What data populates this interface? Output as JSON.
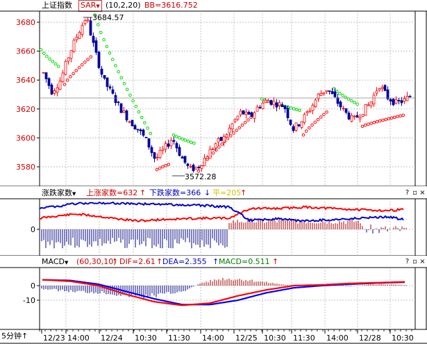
{
  "kline": {
    "index_name": "上证指数",
    "sar_label": "SAR",
    "sar_params": "(10,2,20)",
    "bb_text": "BB=3616.752",
    "y_labels": [
      "3680",
      "3660",
      "3640",
      "3620",
      "3600",
      "3580"
    ],
    "high_label": "3684.57",
    "low_label": "3572.28"
  },
  "breadth": {
    "indicator": "涨跌家数",
    "up_text": "上涨家数=632",
    "down_text": "下跌家数=366",
    "flat_text": "平=205",
    "y_labels": [
      "0"
    ]
  },
  "macd": {
    "indicator": "MACD",
    "params": "(60,30,10)",
    "dif_text": "DIF=2.61",
    "dea_text": "DEA=2.355",
    "macd_text": "MACD=0.511",
    "y_labels": [
      "0",
      "-10"
    ]
  },
  "xaxis": {
    "period": "5分钟",
    "labels": [
      "12/23",
      "14:00",
      "12/24",
      "10:30",
      "11:30",
      "14:00",
      "12/25",
      "10:30",
      "11:30",
      "14:00",
      "12/28",
      "10:30"
    ]
  },
  "colors": {
    "up": "#ff0000",
    "down": "#0000a0",
    "sar_up": "#ff0000",
    "sar_down": "#00d800",
    "dif": "#ff0000",
    "dea": "#0000ff",
    "hist_pos": "#a00000",
    "hist_neg": "#000080",
    "title_red": "#cc0000",
    "title_blue": "#0000cc",
    "title_yellow": "#d0c000"
  },
  "chart_data": [
    {
      "type": "candlestick",
      "title": "上证指数",
      "ylim": [
        3570,
        3690
      ],
      "x_labels": [
        "12/23",
        "14:00",
        "12/24",
        "10:30",
        "11:30",
        "14:00",
        "12/25",
        "10:30",
        "11:30",
        "14:00",
        "12/28",
        "10:30"
      ],
      "close_path": [
        3645,
        3632,
        3640,
        3658,
        3672,
        3684,
        3660,
        3640,
        3630,
        3620,
        3612,
        3606,
        3598,
        3585,
        3592,
        3600,
        3587,
        3578,
        3580,
        3588,
        3596,
        3600,
        3610,
        3618,
        3614,
        3622,
        3626,
        3624,
        3622,
        3606,
        3612,
        3620,
        3630,
        3634,
        3626,
        3618,
        3612,
        3618,
        3624,
        3637,
        3628,
        3624,
        3626,
        3631
      ],
      "annotations": [
        {
          "text": "3684.57",
          "kind": "high"
        },
        {
          "text": "3572.28",
          "kind": "low"
        }
      ],
      "reference_lines": [
        {
          "name": "BB",
          "value": 3616.752
        }
      ]
    },
    {
      "type": "line",
      "title": "涨跌家数",
      "series": [
        {
          "name": "上涨家数",
          "final_value": 632
        },
        {
          "name": "下跌家数",
          "final_value": 366
        }
      ]
    },
    {
      "type": "line",
      "title": "MACD",
      "ylim": [
        -15,
        4
      ],
      "series": [
        {
          "name": "DIF",
          "values": [
            4,
            3,
            0,
            -6,
            -11,
            -13.5,
            -12,
            -7,
            -3,
            0,
            0.5,
            1.5,
            2,
            2.6
          ]
        },
        {
          "name": "DEA",
          "values": [
            4,
            3.5,
            1,
            -4,
            -9,
            -13,
            -13,
            -10,
            -5,
            -1.5,
            0,
            1,
            1.8,
            2.355
          ]
        },
        {
          "name": "MACD",
          "last_value": 0.511
        }
      ]
    }
  ]
}
